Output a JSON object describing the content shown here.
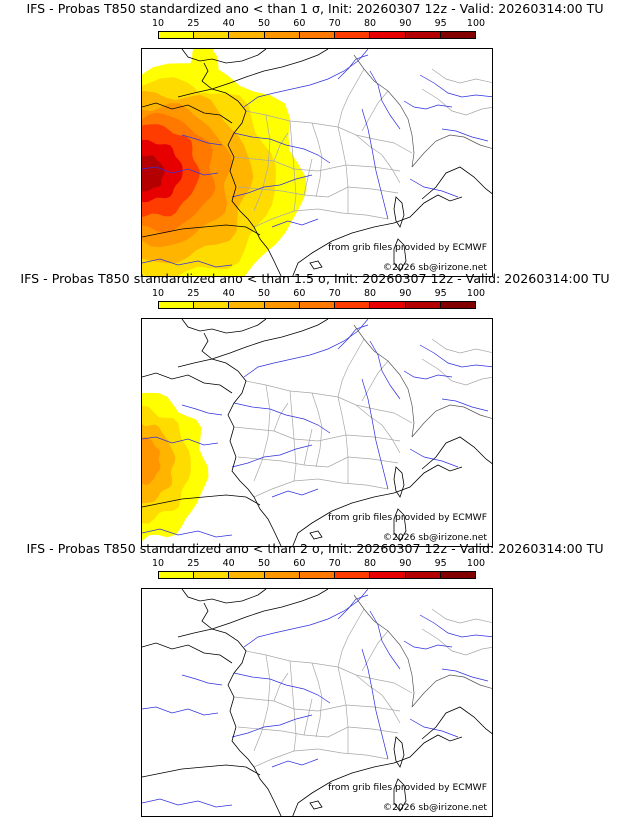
{
  "colorbar": {
    "levels": [
      "10",
      "25",
      "40",
      "50",
      "60",
      "70",
      "80",
      "90",
      "95",
      "100"
    ],
    "colors": [
      "#ffff00",
      "#ffdc00",
      "#ffb400",
      "#ff9600",
      "#ff7800",
      "#ff3c00",
      "#e60000",
      "#b40000",
      "#820000",
      "#500000"
    ]
  },
  "panels": [
    {
      "title": "IFS - Probas T850  standardized ano < than 1 σ, Init: 20260307 12z - Valid: 20260314:00 TU",
      "source": "from grib files provided by ECMWF",
      "copyright": "©2026 sb@irizone.net",
      "probability_extent": "large"
    },
    {
      "title": "IFS - Probas T850  standardized ano < than 1.5 σ, Init: 20260307 12z - Valid: 20260314:00 TU",
      "source": "from grib files provided by ECMWF",
      "copyright": "©2026 sb@irizone.net",
      "probability_extent": "small"
    },
    {
      "title": "IFS - Probas T850  standardized ano < than 2 σ, Init: 20260307 12z - Valid: 20260314:00 TU",
      "source": "from grib files provided by ECMWF",
      "copyright": "©2026 sb@irizone.net",
      "probability_extent": "none"
    }
  ]
}
